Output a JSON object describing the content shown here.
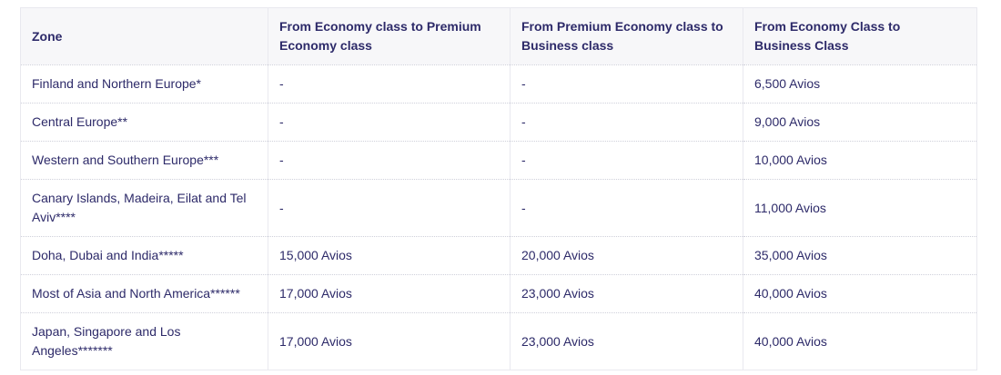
{
  "table": {
    "columns": [
      "Zone",
      "From Economy class to Premium Economy class",
      "From Premium Economy class to Business class",
      "From Economy Class to Business Class"
    ],
    "rows": [
      {
        "cells": [
          "Finland and Northern Europe*",
          "-",
          "-",
          "6,500 Avios"
        ]
      },
      {
        "cells": [
          "Central Europe**",
          "-",
          "-",
          "9,000 Avios"
        ]
      },
      {
        "cells": [
          "Western and Southern Europe***",
          "-",
          "-",
          "10,000 Avios"
        ]
      },
      {
        "cells": [
          "Canary Islands, Madeira, Eilat and Tel Aviv****",
          "-",
          "-",
          "11,000 Avios"
        ]
      },
      {
        "cells": [
          "Doha, Dubai and India*****",
          "15,000 Avios",
          "20,000 Avios",
          "35,000 Avios"
        ]
      },
      {
        "cells": [
          "Most of Asia and North America******",
          "17,000 Avios",
          "23,000 Avios",
          "40,000 Avios"
        ]
      },
      {
        "cells": [
          "Japan, Singapore and Los Angeles*******",
          "17,000 Avios",
          "23,000 Avios",
          "40,000 Avios"
        ]
      }
    ],
    "colors": {
      "text": "#2d2a69",
      "header_background": "#f7f7f9",
      "row_background": "#ffffff",
      "border": "#e9e9ef",
      "row_divider": "#cfd0da"
    }
  }
}
